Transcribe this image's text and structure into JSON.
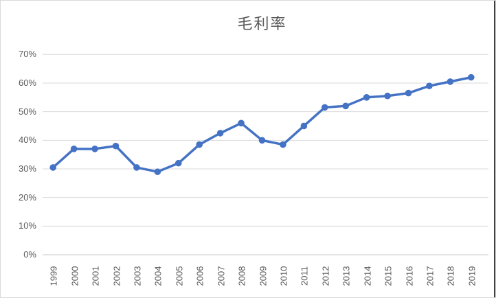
{
  "chart": {
    "title": "毛利率",
    "colors": {
      "line": "#4472C4",
      "marker": "#4472C4",
      "gridline": "#D9D9D9",
      "axis_line": "#C9C9C9",
      "tick_label": "#595959",
      "title_text": "#595959",
      "chart_border": "#D9D9D9",
      "right_edge_line": "#404040",
      "background": "#FFFFFF"
    }
  },
  "chart_data": {
    "type": "line",
    "title": "毛利率",
    "series_name": "毛利率",
    "categories": [
      "1999",
      "2000",
      "2001",
      "2002",
      "2003",
      "2004",
      "2005",
      "2006",
      "2007",
      "2008",
      "2009",
      "2010",
      "2011",
      "2012",
      "2013",
      "2014",
      "2015",
      "2016",
      "2017",
      "2018",
      "2019"
    ],
    "values": [
      30.5,
      37,
      37,
      38,
      30.5,
      29,
      32,
      38.5,
      42.5,
      46,
      40,
      38.5,
      45,
      51.5,
      52,
      55,
      55.5,
      56.5,
      59,
      60.5,
      62
    ],
    "unit": "%",
    "xlabel": "",
    "ylabel": "",
    "ylim": [
      0,
      70
    ],
    "yticks": [
      {
        "value": 0,
        "label": "0%"
      },
      {
        "value": 10,
        "label": "10%"
      },
      {
        "value": 20,
        "label": "20%"
      },
      {
        "value": 30,
        "label": "30%"
      },
      {
        "value": 40,
        "label": "40%"
      },
      {
        "value": 50,
        "label": "50%"
      },
      {
        "value": 60,
        "label": "60%"
      },
      {
        "value": 70,
        "label": "70%"
      }
    ],
    "grid": true,
    "legend": "none",
    "marker": "circle",
    "x_label_rotation_deg": -90
  }
}
